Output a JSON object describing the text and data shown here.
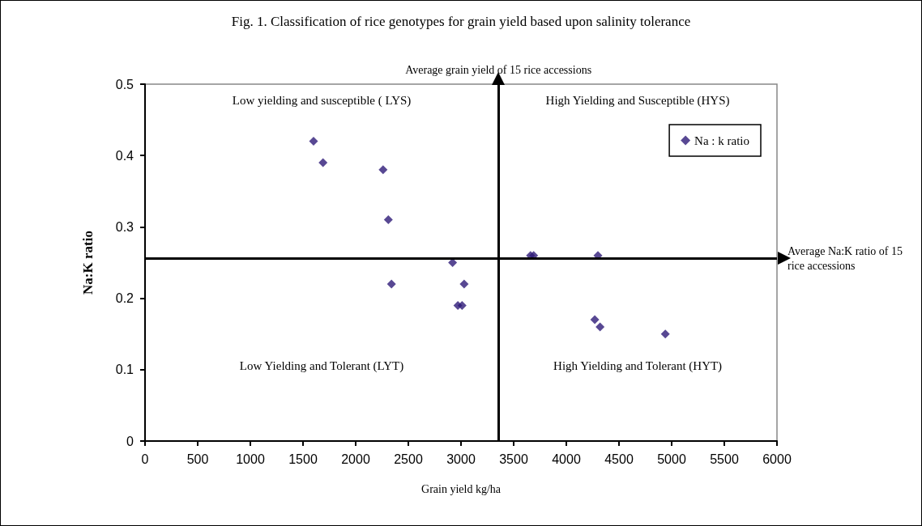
{
  "chart_data": {
    "type": "scatter",
    "title": "Fig. 1. Classification of rice genotypes for grain yield based upon salinity tolerance",
    "xlabel": "Grain yield kg/ha",
    "ylabel": "Na:K ratio",
    "x": [
      1600,
      1690,
      2260,
      2310,
      2340,
      2920,
      3030,
      2970,
      3010,
      3660,
      3690,
      4300,
      4270,
      4320,
      4940
    ],
    "series": [
      {
        "name": "Na : k ratio",
        "color": "#2e1a78",
        "values": [
          0.42,
          0.39,
          0.38,
          0.31,
          0.22,
          0.25,
          0.22,
          0.19,
          0.19,
          0.26,
          0.26,
          0.26,
          0.17,
          0.16,
          0.15
        ]
      }
    ],
    "xlim": [
      0,
      6000
    ],
    "xticks": [
      0,
      500,
      1000,
      1500,
      2000,
      2500,
      3000,
      3500,
      4000,
      4500,
      5000,
      5500,
      6000
    ],
    "ylim": [
      0,
      0.5
    ],
    "yticks": [
      0,
      0.1,
      0.2,
      0.3,
      0.4,
      0.5
    ],
    "ref_lines": [
      {
        "axis": "x",
        "value": 3355,
        "label": "Average grain yield of 15 rice accessions",
        "color": "#000000"
      },
      {
        "axis": "y",
        "value": 0.256,
        "label": "Average Na:K ratio of 15 rice accessions",
        "color": "#000000"
      }
    ],
    "annotations": [
      "Low yielding and susceptible ( LYS)",
      "High Yielding and Susceptible (HYS)",
      "Low Yielding and Tolerant (LYT)",
      "High Yielding and Tolerant (HYT)"
    ],
    "marker": "diamond",
    "legend": "top right",
    "grid": false
  }
}
